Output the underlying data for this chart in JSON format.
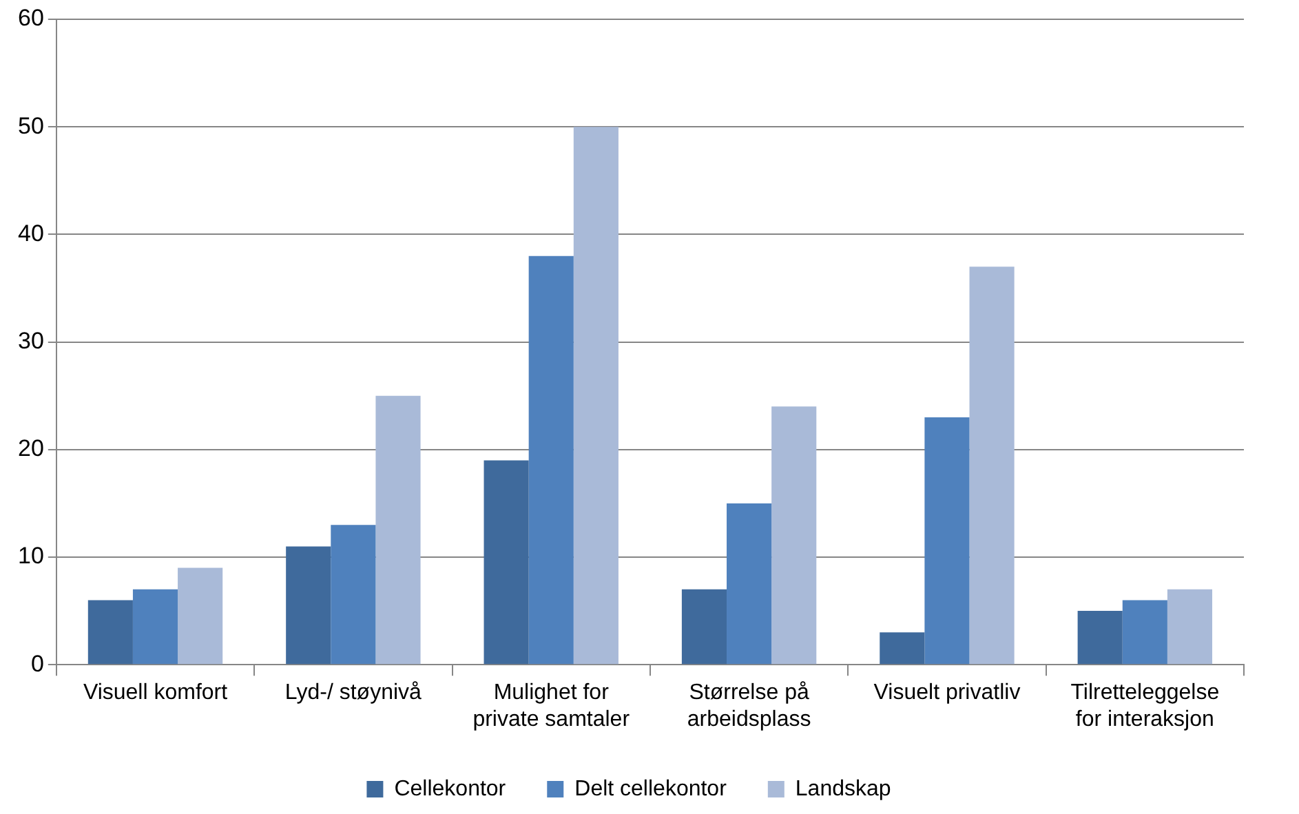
{
  "chart_data": {
    "type": "bar",
    "categories": [
      "Visuell komfort",
      "Lyd-/ støynivå",
      "Mulighet for private samtaler",
      "Størrelse på arbeidsplass",
      "Visuelt privatliv",
      "Tilretteleggelse for interaksjon"
    ],
    "series": [
      {
        "name": "Cellekontor",
        "color": "#3f6a9c",
        "values": [
          6,
          11,
          19,
          7,
          3,
          5
        ]
      },
      {
        "name": "Delt cellekontor",
        "color": "#4f81bd",
        "values": [
          7,
          13,
          38,
          15,
          23,
          6
        ]
      },
      {
        "name": "Landskap",
        "color": "#a9bad8",
        "values": [
          9,
          25,
          50,
          24,
          37,
          7
        ]
      }
    ],
    "ylim": [
      0,
      60
    ],
    "yticks": [
      0,
      10,
      20,
      30,
      40,
      50,
      60
    ],
    "grid": "y",
    "legend": "bottom"
  }
}
